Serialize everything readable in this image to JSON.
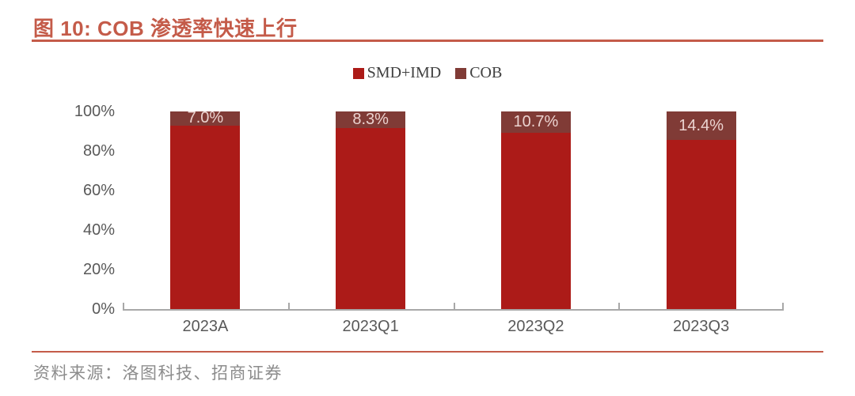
{
  "header": {
    "title": "图 10: COB 渗透率快速上行"
  },
  "footer": {
    "source": "资料来源：洛图科技、招商证券"
  },
  "colors": {
    "accent_rule": "#C45B49",
    "title": "#C45B49",
    "smd_imd": "#AC1B18",
    "cob": "#803B36",
    "bar_label": "#EBD3D0",
    "axis": "#A8A8A8",
    "tick_label": "#595959",
    "legend_text": "#404040",
    "source_text": "#8C8C8C"
  },
  "chart_data": {
    "type": "bar",
    "stacked": true,
    "percent_stacked": true,
    "title": "图 10: COB 渗透率快速上行",
    "categories": [
      "2023A",
      "2023Q1",
      "2023Q2",
      "2023Q3"
    ],
    "series": [
      {
        "name": "SMD+IMD",
        "color": "#AC1B18",
        "values": [
          93.0,
          91.7,
          89.3,
          85.6
        ]
      },
      {
        "name": "COB",
        "color": "#803B36",
        "values": [
          7.0,
          8.3,
          10.7,
          14.4
        ],
        "labels": [
          "7.0%",
          "8.3%",
          "10.7%",
          "14.4%"
        ]
      }
    ],
    "xlabel": "",
    "ylabel": "",
    "yticks": [
      "100%",
      "80%",
      "60%",
      "40%",
      "20%",
      "0%"
    ],
    "ylim": [
      0,
      100
    ],
    "legend_position": "top-center",
    "grid": false
  }
}
